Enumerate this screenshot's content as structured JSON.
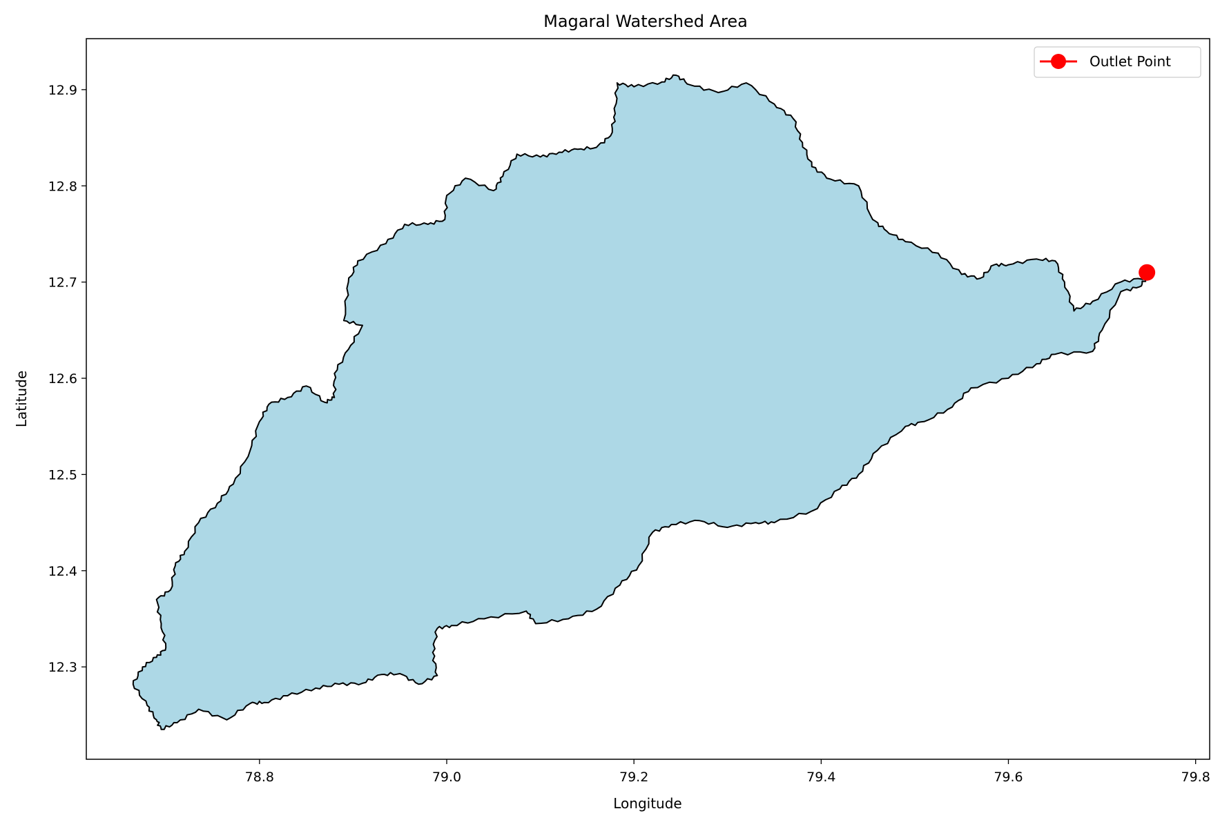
{
  "chart_data": {
    "type": "map",
    "title": "Magaral Watershed Area",
    "xlabel": "Longitude",
    "ylabel": "Latitude",
    "xlim": [
      78.615,
      79.815
    ],
    "ylim": [
      12.204,
      12.953
    ],
    "xticks": [
      78.8,
      79.0,
      79.2,
      79.4,
      79.6,
      79.8
    ],
    "xtick_labels": [
      "78.8",
      "79.0",
      "79.2",
      "79.4",
      "79.6",
      "79.8"
    ],
    "yticks": [
      12.3,
      12.4,
      12.5,
      12.6,
      12.7,
      12.8,
      12.9
    ],
    "ytick_labels": [
      "12.3",
      "12.4",
      "12.5",
      "12.6",
      "12.7",
      "12.8",
      "12.9"
    ],
    "grid": false,
    "legend": {
      "placement": "top-right",
      "entries": [
        "Outlet Point"
      ]
    },
    "colors": {
      "watershed_fill": "#add8e6",
      "boundary": "#000000",
      "outlet": "#ff0000"
    },
    "outlet": {
      "lon": 79.748,
      "lat": 12.71
    },
    "watershed_boundary": [
      [
        78.695,
        12.235
      ],
      [
        78.712,
        12.242
      ],
      [
        78.735,
        12.256
      ],
      [
        78.765,
        12.245
      ],
      [
        78.79,
        12.262
      ],
      [
        78.805,
        12.263
      ],
      [
        78.83,
        12.27
      ],
      [
        78.86,
        12.278
      ],
      [
        78.885,
        12.282
      ],
      [
        78.91,
        12.283
      ],
      [
        78.93,
        12.292
      ],
      [
        78.95,
        12.293
      ],
      [
        78.97,
        12.282
      ],
      [
        78.99,
        12.291
      ],
      [
        78.985,
        12.315
      ],
      [
        78.99,
        12.34
      ],
      [
        79.005,
        12.343
      ],
      [
        79.04,
        12.35
      ],
      [
        79.085,
        12.358
      ],
      [
        79.095,
        12.345
      ],
      [
        79.13,
        12.35
      ],
      [
        79.16,
        12.36
      ],
      [
        79.185,
        12.385
      ],
      [
        79.205,
        12.405
      ],
      [
        79.22,
        12.44
      ],
      [
        79.24,
        12.448
      ],
      [
        79.27,
        12.452
      ],
      [
        79.3,
        12.445
      ],
      [
        79.33,
        12.45
      ],
      [
        79.35,
        12.45
      ],
      [
        79.39,
        12.462
      ],
      [
        79.42,
        12.485
      ],
      [
        79.44,
        12.5
      ],
      [
        79.46,
        12.525
      ],
      [
        79.49,
        12.55
      ],
      [
        79.51,
        12.555
      ],
      [
        79.54,
        12.57
      ],
      [
        79.56,
        12.59
      ],
      [
        79.6,
        12.6
      ],
      [
        79.63,
        12.615
      ],
      [
        79.65,
        12.625
      ],
      [
        79.69,
        12.628
      ],
      [
        79.7,
        12.65
      ],
      [
        79.72,
        12.69
      ],
      [
        79.74,
        12.695
      ],
      [
        79.748,
        12.705
      ],
      [
        79.72,
        12.7
      ],
      [
        79.69,
        12.68
      ],
      [
        79.67,
        12.67
      ],
      [
        79.66,
        12.7
      ],
      [
        79.65,
        12.722
      ],
      [
        79.63,
        12.724
      ],
      [
        79.6,
        12.718
      ],
      [
        79.585,
        12.718
      ],
      [
        79.57,
        12.704
      ],
      [
        79.55,
        12.708
      ],
      [
        79.525,
        12.73
      ],
      [
        79.49,
        12.742
      ],
      [
        79.47,
        12.753
      ],
      [
        79.455,
        12.765
      ],
      [
        79.44,
        12.8
      ],
      [
        79.41,
        12.807
      ],
      [
        79.39,
        12.82
      ],
      [
        79.38,
        12.845
      ],
      [
        79.37,
        12.87
      ],
      [
        79.35,
        12.885
      ],
      [
        79.32,
        12.907
      ],
      [
        79.29,
        12.897
      ],
      [
        79.26,
        12.905
      ],
      [
        79.245,
        12.915
      ],
      [
        79.23,
        12.908
      ],
      [
        79.2,
        12.903
      ],
      [
        79.182,
        12.907
      ],
      [
        79.18,
        12.875
      ],
      [
        79.175,
        12.852
      ],
      [
        79.16,
        12.84
      ],
      [
        79.14,
        12.838
      ],
      [
        79.12,
        12.835
      ],
      [
        79.1,
        12.83
      ],
      [
        79.075,
        12.833
      ],
      [
        79.06,
        12.81
      ],
      [
        79.05,
        12.795
      ],
      [
        79.02,
        12.808
      ],
      [
        79.0,
        12.79
      ],
      [
        78.998,
        12.765
      ],
      [
        78.98,
        12.76
      ],
      [
        78.955,
        12.76
      ],
      [
        78.935,
        12.74
      ],
      [
        78.905,
        12.722
      ],
      [
        78.895,
        12.7
      ],
      [
        78.89,
        12.66
      ],
      [
        78.91,
        12.655
      ],
      [
        78.895,
        12.63
      ],
      [
        78.88,
        12.605
      ],
      [
        78.88,
        12.58
      ],
      [
        78.87,
        12.575
      ],
      [
        78.85,
        12.592
      ],
      [
        78.83,
        12.58
      ],
      [
        78.81,
        12.573
      ],
      [
        78.8,
        12.555
      ],
      [
        78.79,
        12.525
      ],
      [
        78.772,
        12.49
      ],
      [
        78.755,
        12.47
      ],
      [
        78.735,
        12.45
      ],
      [
        78.72,
        12.42
      ],
      [
        78.71,
        12.405
      ],
      [
        78.705,
        12.38
      ],
      [
        78.69,
        12.37
      ],
      [
        78.695,
        12.345
      ],
      [
        78.7,
        12.32
      ],
      [
        78.69,
        12.31
      ],
      [
        78.675,
        12.3
      ],
      [
        78.665,
        12.282
      ],
      [
        78.68,
        12.26
      ],
      [
        78.69,
        12.245
      ]
    ]
  }
}
